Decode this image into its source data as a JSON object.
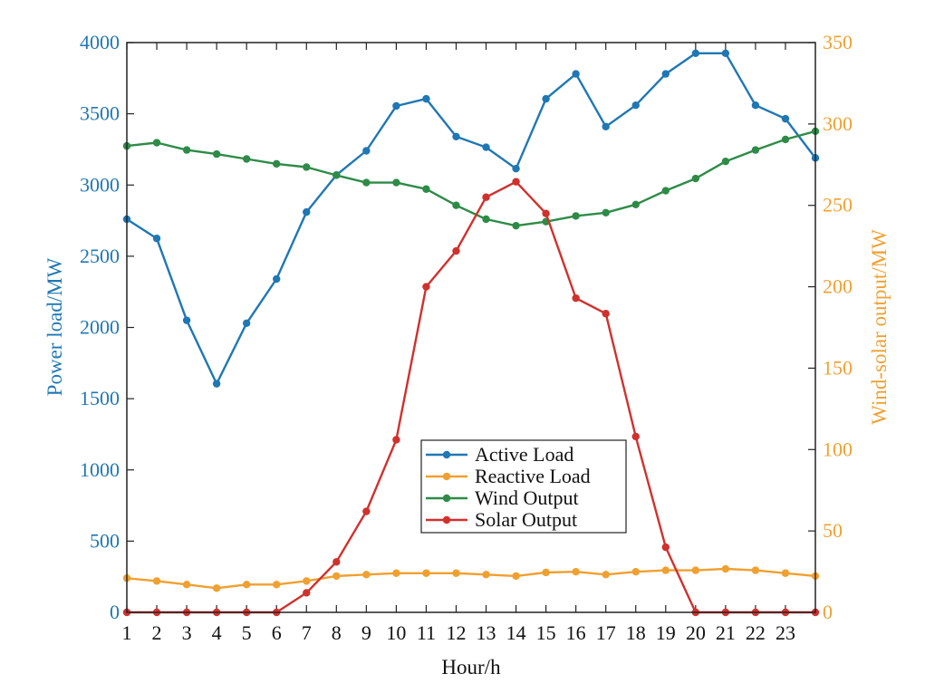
{
  "chart_data": {
    "type": "line",
    "x": [
      1,
      2,
      3,
      4,
      5,
      6,
      7,
      8,
      9,
      10,
      11,
      12,
      13,
      14,
      15,
      16,
      17,
      18,
      19,
      20,
      21,
      22,
      23,
      24
    ],
    "x_tick_labels": [
      "1",
      "2",
      "3",
      "4",
      "5",
      "6",
      "7",
      "8",
      "9",
      "10",
      "11",
      "12",
      "13",
      "14",
      "15",
      "16",
      "17",
      "18",
      "19",
      "20",
      "21",
      "22",
      "23"
    ],
    "xlabel": "Hour/h",
    "ylabel_left": "Power load/MW",
    "ylabel_right": "Wind-solar output/MW",
    "ylim_left": [
      0,
      4000
    ],
    "ylim_right": [
      0,
      350
    ],
    "yticks_left": [
      0,
      500,
      1000,
      1500,
      2000,
      2500,
      3000,
      3500,
      4000
    ],
    "yticks_right": [
      0,
      50,
      100,
      150,
      200,
      250,
      300,
      350
    ],
    "series": [
      {
        "name": "Active Load",
        "axis": "left",
        "color": "#1f77b4",
        "values": [
          2760,
          2625,
          2050,
          1605,
          2030,
          2340,
          2810,
          3070,
          3240,
          3555,
          3605,
          3340,
          3265,
          3115,
          3605,
          3780,
          3410,
          3560,
          3780,
          3925,
          3925,
          3560,
          3465,
          3190
        ]
      },
      {
        "name": "Reactive Load",
        "axis": "left",
        "color": "#f0a030",
        "values": [
          240,
          220,
          195,
          170,
          195,
          195,
          220,
          255,
          265,
          275,
          275,
          275,
          265,
          255,
          280,
          285,
          265,
          285,
          295,
          295,
          305,
          295,
          275,
          255
        ]
      },
      {
        "name": "Wind Output",
        "axis": "right",
        "color": "#2e8b47",
        "values": [
          286.5,
          288.5,
          284,
          281.5,
          278.5,
          275.5,
          273.5,
          268.5,
          264,
          264,
          260,
          250,
          241.5,
          237.5,
          240,
          243.5,
          245.5,
          250.5,
          259,
          266.5,
          277,
          284,
          290.5,
          295.5
        ]
      },
      {
        "name": "Solar Output",
        "axis": "right",
        "color": "#d0312d",
        "values": [
          0,
          0,
          0,
          0,
          0,
          0,
          12,
          31,
          62,
          106,
          200,
          222,
          255,
          264.5,
          245,
          193,
          183.5,
          108,
          40,
          0,
          0,
          0,
          0,
          0
        ]
      }
    ],
    "legend_position": "center"
  },
  "colors": {
    "left_axis": "#1f77b4",
    "right_axis": "#f0a030",
    "frame": "#222222"
  }
}
